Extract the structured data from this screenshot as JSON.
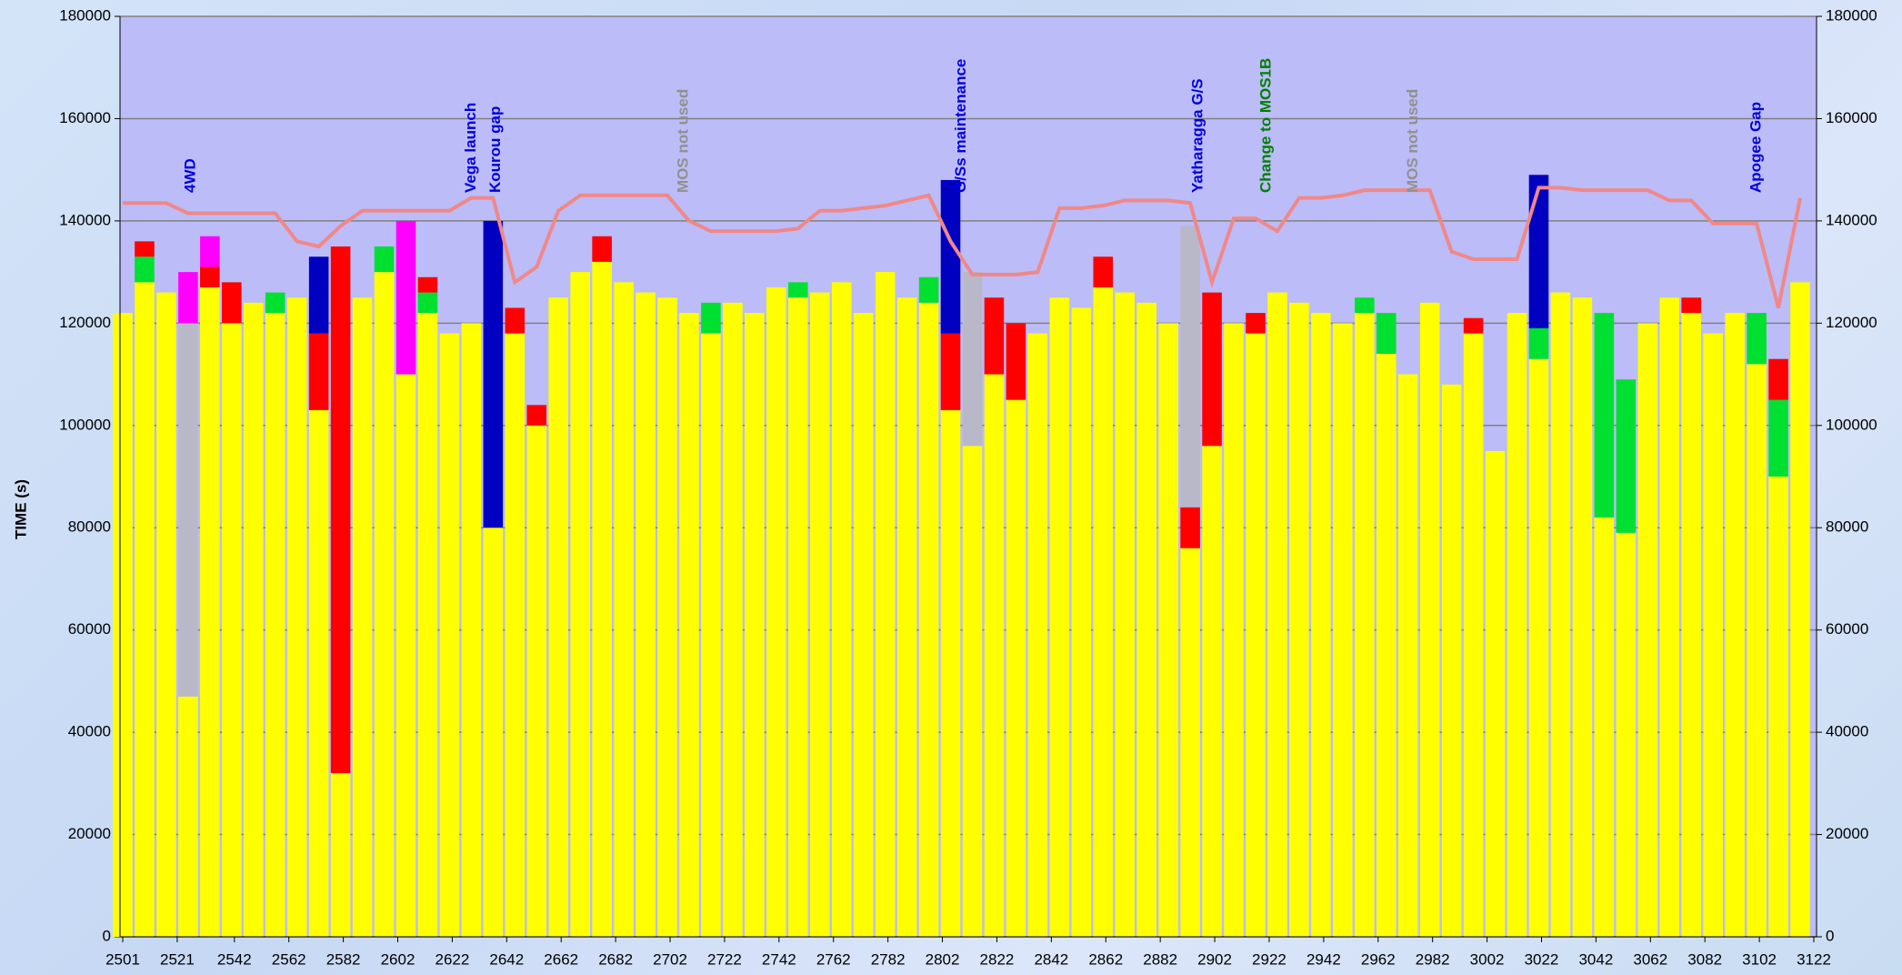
{
  "chart_data": {
    "type": "bar",
    "stacked": true,
    "y_label": "TIME (s)",
    "x": [
      2501,
      2509,
      2517,
      2525,
      2533,
      2541,
      2549,
      2557,
      2565,
      2573,
      2581,
      2589,
      2597,
      2605,
      2613,
      2621,
      2629,
      2637,
      2645,
      2653,
      2661,
      2669,
      2677,
      2685,
      2693,
      2701,
      2709,
      2717,
      2725,
      2733,
      2741,
      2749,
      2757,
      2765,
      2773,
      2781,
      2789,
      2797,
      2805,
      2813,
      2821,
      2829,
      2837,
      2845,
      2853,
      2861,
      2869,
      2877,
      2885,
      2893,
      2901,
      2909,
      2917,
      2925,
      2933,
      2941,
      2949,
      2957,
      2965,
      2973,
      2981,
      2989,
      2997,
      3005,
      3013,
      3021,
      3029,
      3037,
      3045,
      3053,
      3061,
      3069,
      3077,
      3085,
      3093,
      3101,
      3109,
      3117
    ],
    "series": [
      {
        "color": "#ffff00",
        "values": [
          122000,
          128000,
          126000,
          47000,
          127000,
          120000,
          124000,
          122000,
          125000,
          103000,
          32000,
          125000,
          130000,
          110000,
          122000,
          118000,
          120000,
          80000,
          118000,
          100000,
          125000,
          130000,
          132000,
          128000,
          126000,
          125000,
          122000,
          118000,
          124000,
          122000,
          127000,
          125000,
          126000,
          128000,
          122000,
          130000,
          125000,
          124000,
          103000,
          96000,
          110000,
          105000,
          118000,
          125000,
          123000,
          127000,
          126000,
          124000,
          120000,
          76000,
          96000,
          120000,
          118000,
          126000,
          124000,
          122000,
          120000,
          122000,
          114000,
          110000,
          124000,
          108000,
          118000,
          95000,
          122000,
          113000,
          126000,
          125000,
          82000,
          79000,
          120000,
          125000,
          122000,
          118000,
          122000,
          112000,
          90000,
          128000
        ]
      },
      {
        "color": "#00e030",
        "values": [
          0,
          5000,
          0,
          0,
          0,
          0,
          0,
          4000,
          0,
          0,
          0,
          0,
          5000,
          0,
          4000,
          0,
          0,
          0,
          0,
          0,
          0,
          0,
          0,
          0,
          0,
          0,
          0,
          6000,
          0,
          0,
          0,
          3000,
          0,
          0,
          0,
          0,
          0,
          5000,
          0,
          0,
          0,
          0,
          0,
          0,
          0,
          0,
          0,
          0,
          0,
          0,
          0,
          0,
          0,
          0,
          0,
          0,
          0,
          3000,
          8000,
          0,
          0,
          0,
          0,
          0,
          0,
          6000,
          0,
          0,
          40000,
          30000,
          0,
          0,
          0,
          0,
          0,
          10000,
          15000,
          0
        ]
      },
      {
        "color": "#ff0000",
        "values": [
          0,
          3000,
          0,
          0,
          4000,
          8000,
          0,
          0,
          0,
          15000,
          103000,
          0,
          0,
          0,
          3000,
          0,
          0,
          0,
          5000,
          4000,
          0,
          0,
          5000,
          0,
          0,
          0,
          0,
          0,
          0,
          0,
          0,
          0,
          0,
          0,
          0,
          0,
          0,
          0,
          15000,
          0,
          15000,
          15000,
          0,
          0,
          0,
          6000,
          0,
          0,
          0,
          8000,
          30000,
          0,
          4000,
          0,
          0,
          0,
          0,
          0,
          0,
          0,
          0,
          0,
          3000,
          0,
          0,
          0,
          0,
          0,
          0,
          0,
          0,
          0,
          3000,
          0,
          0,
          0,
          8000,
          0
        ]
      },
      {
        "color": "#b8b8c8",
        "values": [
          0,
          0,
          0,
          73000,
          0,
          0,
          0,
          0,
          0,
          0,
          0,
          0,
          0,
          0,
          0,
          0,
          0,
          0,
          0,
          0,
          0,
          0,
          0,
          0,
          0,
          0,
          0,
          0,
          0,
          0,
          0,
          0,
          0,
          0,
          0,
          0,
          0,
          0,
          0,
          34000,
          0,
          0,
          0,
          0,
          0,
          0,
          0,
          0,
          0,
          55000,
          0,
          0,
          0,
          0,
          0,
          0,
          0,
          0,
          0,
          0,
          0,
          0,
          0,
          0,
          0,
          0,
          0,
          0,
          0,
          0,
          0,
          0,
          0,
          0,
          0,
          0,
          0,
          0
        ]
      },
      {
        "color": "#0000c0",
        "values": [
          0,
          0,
          0,
          0,
          0,
          0,
          0,
          0,
          0,
          15000,
          0,
          0,
          0,
          0,
          0,
          0,
          0,
          60000,
          0,
          0,
          0,
          0,
          0,
          0,
          0,
          0,
          0,
          0,
          0,
          0,
          0,
          0,
          0,
          0,
          0,
          0,
          0,
          0,
          30000,
          0,
          0,
          0,
          0,
          0,
          0,
          0,
          0,
          0,
          0,
          0,
          0,
          0,
          0,
          0,
          0,
          0,
          0,
          0,
          0,
          0,
          0,
          0,
          0,
          0,
          0,
          30000,
          0,
          0,
          0,
          0,
          0,
          0,
          0,
          0,
          0,
          0,
          0,
          0
        ]
      },
      {
        "color": "#ff00ff",
        "values": [
          0,
          0,
          0,
          10000,
          6000,
          0,
          0,
          0,
          0,
          0,
          0,
          0,
          0,
          30000,
          0,
          0,
          0,
          0,
          0,
          0,
          0,
          0,
          0,
          0,
          0,
          0,
          0,
          0,
          0,
          0,
          0,
          0,
          0,
          0,
          0,
          0,
          0,
          0,
          0,
          0,
          0,
          0,
          0,
          0,
          0,
          0,
          0,
          0,
          0,
          0,
          0,
          0,
          0,
          0,
          0,
          0,
          0,
          0,
          0,
          0,
          0,
          0,
          0,
          0,
          0,
          0,
          0,
          0,
          0,
          0,
          0,
          0,
          0,
          0,
          0,
          0,
          0,
          0
        ]
      }
    ],
    "line": {
      "color": "#f08888",
      "values": [
        143500,
        143500,
        143500,
        141500,
        141500,
        141500,
        141500,
        141500,
        136000,
        135000,
        139000,
        142000,
        142000,
        142000,
        142000,
        142000,
        144500,
        144500,
        128000,
        131000,
        142000,
        145000,
        145000,
        145000,
        145000,
        145000,
        140000,
        138000,
        138000,
        138000,
        138000,
        138500,
        142000,
        142000,
        142500,
        143000,
        144000,
        145000,
        136000,
        129500,
        129500,
        129500,
        130000,
        142500,
        142500,
        143000,
        144000,
        144000,
        144000,
        143500,
        128000,
        140500,
        140500,
        138000,
        144500,
        144500,
        145000,
        146000,
        146000,
        146000,
        146000,
        134000,
        132500,
        132500,
        132500,
        146500,
        146500,
        146000,
        146000,
        146000,
        146000,
        144000,
        144000,
        139500,
        139500,
        139500,
        123000,
        144500
      ]
    },
    "annotations": [
      {
        "text": "4WD",
        "x": 2526,
        "color": "#0000e0"
      },
      {
        "text": "Vega launch",
        "x": 2629,
        "color": "#0000e0"
      },
      {
        "text": "Kourou gap",
        "x": 2638,
        "color": "#0000e0"
      },
      {
        "text": "MOS not used",
        "x": 2707,
        "color": "#909090"
      },
      {
        "text": "G/Ss maintenance",
        "x": 2809,
        "color": "#0000e0"
      },
      {
        "text": "Yatharagga G/S",
        "x": 2896,
        "color": "#0000e0"
      },
      {
        "text": "Change to MOS1B",
        "x": 2921,
        "color": "#008000"
      },
      {
        "text": "MOS not used",
        "x": 2975,
        "color": "#909090"
      },
      {
        "text": "Apogee Gap",
        "x": 3101,
        "color": "#0000e0"
      }
    ],
    "xlim": [
      2500,
      3123
    ],
    "xticks": [
      2501,
      2521,
      2542,
      2562,
      2582,
      2602,
      2622,
      2642,
      2662,
      2682,
      2702,
      2722,
      2742,
      2762,
      2782,
      2802,
      2822,
      2842,
      2862,
      2882,
      2902,
      2922,
      2942,
      2962,
      2982,
      3002,
      3022,
      3042,
      3062,
      3082,
      3102,
      3122
    ],
    "ylim": [
      0,
      180000
    ],
    "yticks": [
      0,
      20000,
      40000,
      60000,
      80000,
      100000,
      120000,
      140000,
      160000,
      180000
    ],
    "y2lim": [
      0,
      180000
    ],
    "y2ticks": [
      0,
      20000,
      40000,
      60000,
      80000,
      100000,
      120000,
      140000,
      160000,
      180000
    ],
    "grid": true,
    "plot_color": "#bcbcf8"
  }
}
